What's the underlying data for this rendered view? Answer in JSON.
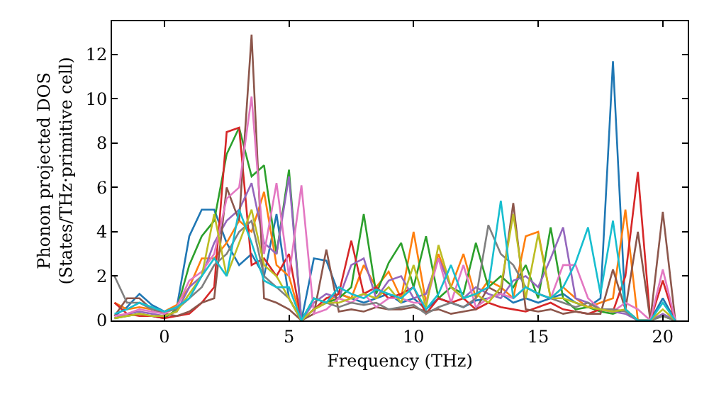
{
  "chart_data": {
    "type": "line",
    "xlabel": "Frequency (THz)",
    "ylabel": "Phonon projected DOS\n(States/THz·primitive cell)",
    "xlim": [
      -2.1,
      21
    ],
    "ylim": [
      0,
      13.5
    ],
    "xticks": [
      0,
      5,
      10,
      15,
      20
    ],
    "yticks": [
      0,
      2,
      4,
      6,
      8,
      10,
      12
    ],
    "grid": false,
    "x": [
      -2,
      -1.5,
      -1,
      -0.5,
      0,
      0.5,
      1,
      1.5,
      2,
      2.5,
      3,
      3.5,
      4,
      4.5,
      5,
      5.5,
      6,
      6.5,
      7,
      7.5,
      8,
      8.5,
      9,
      9.5,
      10,
      10.5,
      11,
      11.5,
      12,
      12.5,
      13,
      13.5,
      14,
      14.5,
      15,
      15.5,
      16,
      16.5,
      17,
      17.5,
      18,
      18.5,
      19,
      19.5,
      20,
      20.5
    ],
    "series": [
      {
        "color": "#1f77b4",
        "values": [
          0.2,
          0.6,
          1.2,
          0.7,
          0.4,
          0.6,
          3.8,
          5.0,
          5.0,
          3.5,
          2.5,
          3.0,
          2.0,
          4.8,
          1.0,
          0,
          2.8,
          2.7,
          1.2,
          1.0,
          0.8,
          1.0,
          1.2,
          0.8,
          1.0,
          0.5,
          1.0,
          0.8,
          0.6,
          0.9,
          1.0,
          1.2,
          0.8,
          1.0,
          0.8,
          1.0,
          1.2,
          0.8,
          0.6,
          1.0,
          11.7,
          0.5,
          0,
          0,
          1.0,
          0
        ]
      },
      {
        "color": "#ff7f0e",
        "values": [
          0.8,
          0.5,
          0.6,
          0.5,
          0.4,
          0.7,
          1.5,
          2.8,
          2.8,
          3.5,
          4.5,
          4.0,
          5.8,
          2.5,
          2.0,
          0,
          0.5,
          0.8,
          1.2,
          1.0,
          2.5,
          1.5,
          2.2,
          1.0,
          4.0,
          0.8,
          3.0,
          1.5,
          3.0,
          1.0,
          1.8,
          1.5,
          1.0,
          3.8,
          4.0,
          1.0,
          1.5,
          1.0,
          0.6,
          0.8,
          1.0,
          5.0,
          0,
          0,
          null,
          null
        ]
      },
      {
        "color": "#2ca02c",
        "values": [
          0.1,
          0.2,
          0.3,
          0.2,
          0.1,
          0.5,
          2.5,
          3.8,
          4.5,
          7.5,
          8.7,
          6.5,
          7.0,
          3.0,
          6.8,
          0,
          1.0,
          0.8,
          1.0,
          1.5,
          4.8,
          1.2,
          2.6,
          3.5,
          1.5,
          3.8,
          1.0,
          1.5,
          1.2,
          3.5,
          1.5,
          2.0,
          1.5,
          2.5,
          1.0,
          4.2,
          1.0,
          0.5,
          0.6,
          0.4,
          0.3,
          0.5,
          0,
          0,
          0.2,
          0
        ]
      },
      {
        "color": "#d62728",
        "values": [
          0.8,
          0.3,
          0.2,
          0.2,
          0.1,
          0.2,
          0.3,
          0.8,
          1.5,
          8.5,
          8.7,
          2.5,
          2.8,
          2.0,
          3.0,
          0,
          0.5,
          1.0,
          1.2,
          3.6,
          1.2,
          1.5,
          1.0,
          1.2,
          1.5,
          0.3,
          1.0,
          0.8,
          1.0,
          0.5,
          0.8,
          0.6,
          0.5,
          0.4,
          0.6,
          0.8,
          0.5,
          0.4,
          0.3,
          0.5,
          0.4,
          2.0,
          6.7,
          0,
          1.8,
          0
        ]
      },
      {
        "color": "#9467bd",
        "values": [
          0.1,
          0.3,
          0.4,
          0.3,
          0.2,
          0.4,
          1.5,
          2.0,
          3.5,
          4.5,
          5.0,
          6.2,
          3.5,
          3.0,
          6.5,
          0,
          0.8,
          1.2,
          1.0,
          2.5,
          2.8,
          1.0,
          1.8,
          2.0,
          1.0,
          1.2,
          2.8,
          1.5,
          1.0,
          1.5,
          1.2,
          1.0,
          1.8,
          2.0,
          1.5,
          2.8,
          4.2,
          1.0,
          0.8,
          0.5,
          0.4,
          0.3,
          0,
          0,
          0.3,
          0
        ]
      },
      {
        "color": "#8c564b",
        "values": [
          0.2,
          1.0,
          1.0,
          0.5,
          0.3,
          0.2,
          0.4,
          0.8,
          1.0,
          6.0,
          4.5,
          12.9,
          1.0,
          0.8,
          0.5,
          0,
          0.3,
          3.2,
          0.4,
          0.5,
          0.4,
          0.6,
          0.5,
          0.5,
          0.6,
          0.4,
          0.5,
          0.3,
          0.4,
          0.5,
          1.5,
          1.2,
          5.3,
          0.5,
          0.4,
          0.5,
          0.3,
          0.4,
          0.3,
          0.3,
          2.3,
          0.5,
          4.0,
          0,
          4.9,
          0
        ]
      },
      {
        "color": "#e377c2",
        "values": [
          0.2,
          0.3,
          0.5,
          0.4,
          0.3,
          0.6,
          1.8,
          2.2,
          3.0,
          5.5,
          6.0,
          10.1,
          3.0,
          6.2,
          2.0,
          6.1,
          0.3,
          0.5,
          1.0,
          0.8,
          1.2,
          0.6,
          1.0,
          1.0,
          0.8,
          0.8,
          2.8,
          0.8,
          2.5,
          0.6,
          1.0,
          1.2,
          1.0,
          1.5,
          1.2,
          1.0,
          2.5,
          2.5,
          1.0,
          0.5,
          0.4,
          0.8,
          0.5,
          0,
          2.3,
          0
        ]
      },
      {
        "color": "#7f7f7f",
        "values": [
          2.0,
          0.8,
          0.8,
          0.5,
          0.4,
          0.5,
          1.0,
          1.5,
          2.5,
          3.0,
          4.0,
          4.5,
          2.0,
          1.5,
          1.0,
          0,
          0.5,
          0.8,
          0.6,
          0.8,
          0.7,
          0.8,
          0.5,
          0.6,
          0.7,
          0.3,
          0.6,
          0.8,
          0.6,
          1.0,
          4.3,
          3.0,
          2.5,
          1.5,
          1.2,
          1.0,
          0.8,
          0.6,
          0.8,
          0.5,
          0.5,
          0.4,
          0,
          0,
          0.2,
          0
        ]
      },
      {
        "color": "#bcbd22",
        "values": [
          0.1,
          0.2,
          0.3,
          0.2,
          0.2,
          0.4,
          1.2,
          2.0,
          4.8,
          2.0,
          3.5,
          5.0,
          2.5,
          2.0,
          1.0,
          0,
          0.5,
          0.8,
          0.8,
          1.0,
          1.2,
          1.0,
          1.5,
          0.8,
          2.5,
          0.6,
          3.4,
          1.5,
          1.0,
          1.2,
          0.8,
          1.5,
          4.8,
          1.0,
          3.9,
          1.0,
          1.0,
          0.8,
          0.6,
          0.5,
          0.4,
          0.5,
          0,
          0,
          0.5,
          0
        ]
      },
      {
        "color": "#17becf",
        "values": [
          0.3,
          0.5,
          0.8,
          0.6,
          0.4,
          0.6,
          1.0,
          2.0,
          2.8,
          2.0,
          5.0,
          3.5,
          1.8,
          1.5,
          1.5,
          0,
          1.0,
          0.8,
          1.5,
          1.2,
          1.0,
          1.4,
          1.2,
          1.0,
          1.5,
          0.5,
          1.2,
          2.5,
          1.0,
          1.2,
          1.5,
          5.4,
          1.0,
          1.5,
          1.2,
          1.0,
          1.5,
          2.6,
          4.2,
          1.2,
          4.5,
          0.5,
          0,
          0,
          0.8,
          0
        ]
      }
    ]
  }
}
